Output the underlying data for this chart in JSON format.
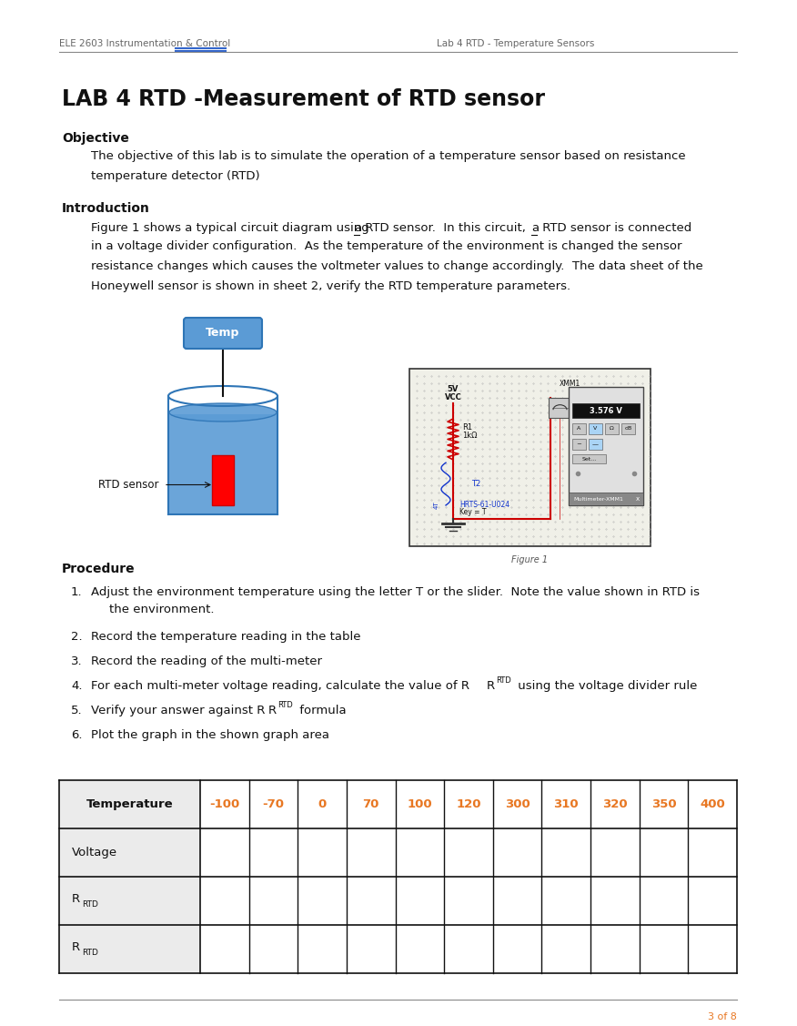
{
  "page_width": 8.76,
  "page_height": 11.27,
  "bg_color": "#ffffff",
  "header_left": "ELE 2603 Instrumentation & Control",
  "header_right": "Lab 4 RTD - Temperature Sensors",
  "header_underline_color": "#3366cc",
  "header_line_color": "#888888",
  "title": "LAB 4 RTD -Measurement of RTD sensor",
  "section_objective": "Objective",
  "section_intro": "Introduction",
  "section_procedure": "Procedure",
  "table_headers": [
    "Temperature",
    "-100",
    "-70",
    "0",
    "70",
    "100",
    "120",
    "300",
    "310",
    "320",
    "350",
    "400"
  ],
  "table_header_color": "#e87722",
  "footer_text": "3 of 8",
  "footer_line_color": "#888888",
  "orange": "#e87722",
  "blue_link": "#3366cc",
  "beaker_fill": "#5b9bd5",
  "beaker_edge": "#2e75b6",
  "temp_box_fill": "#5b9bd5",
  "temp_box_edge": "#2e75b6",
  "rtd_fill": "#ff0000",
  "circuit_bg": "#f0f0e8",
  "circuit_border": "#333333",
  "red_wire": "#cc0000",
  "multimeter_bg": "#e0e0e0",
  "mm_display_bg": "#111111",
  "mm_display_text": "#ffffff",
  "mm_button_active": "#aad4f5"
}
